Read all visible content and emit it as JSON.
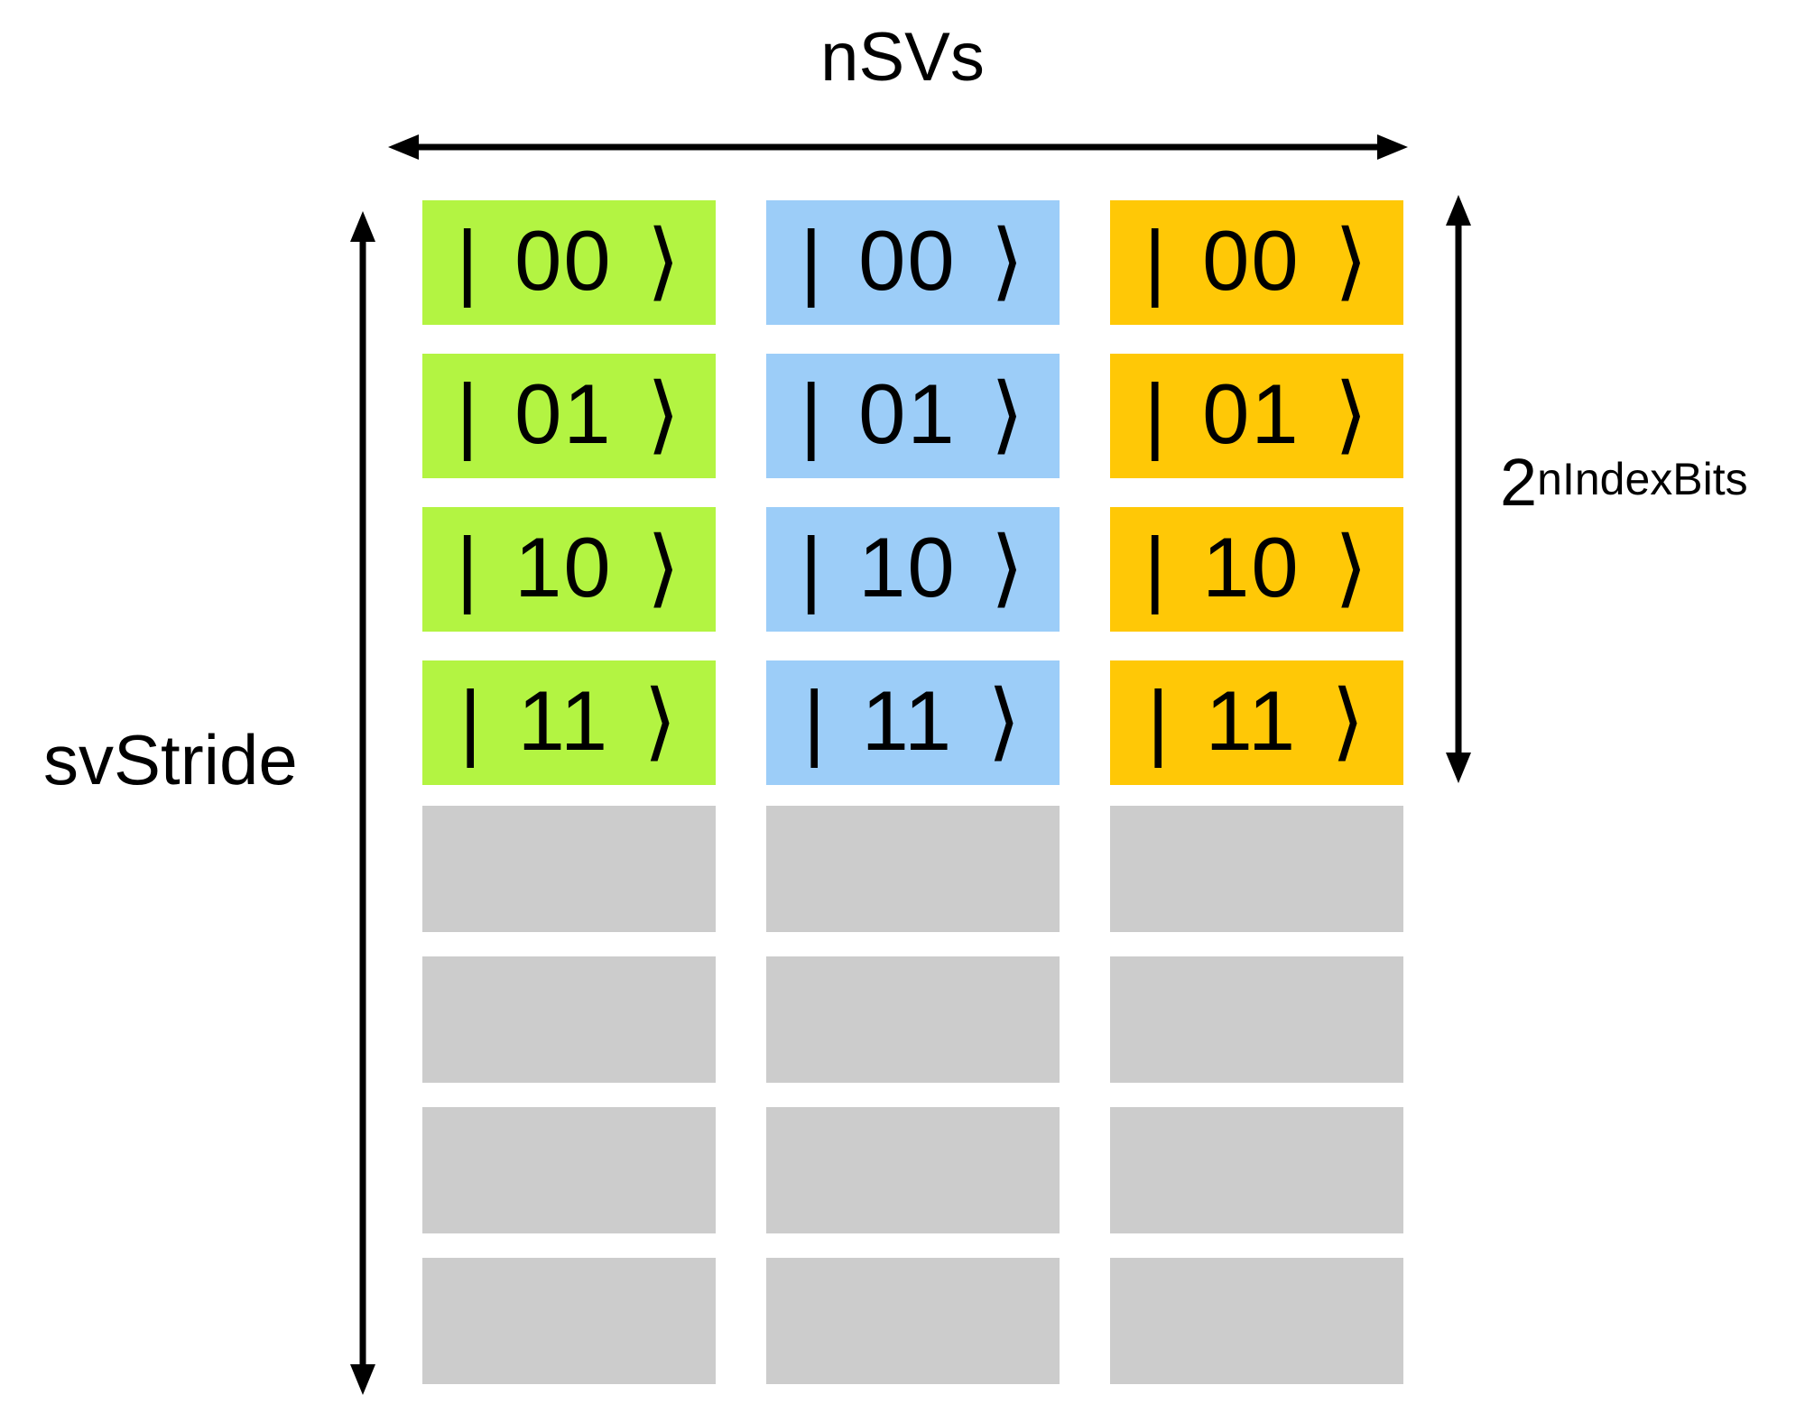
{
  "diagram": {
    "title_top": "nSVs",
    "label_left": "svStride",
    "label_right_base": "2",
    "label_right_superscript": "nIndexBits",
    "basis_states": [
      "| 00 ⟩",
      "| 01 ⟩",
      "| 10 ⟩",
      "| 11 ⟩"
    ],
    "columns": [
      {
        "name": "state-vector-0",
        "color": "#b3f442"
      },
      {
        "name": "state-vector-1",
        "color": "#9ccdf8"
      },
      {
        "name": "state-vector-2",
        "color": "#ffc806"
      }
    ],
    "gray_cells_per_column": 4,
    "colors": {
      "gray_cell": "#cccccc",
      "arrow": "#000000",
      "text": "#000000",
      "background": "#ffffff"
    }
  }
}
